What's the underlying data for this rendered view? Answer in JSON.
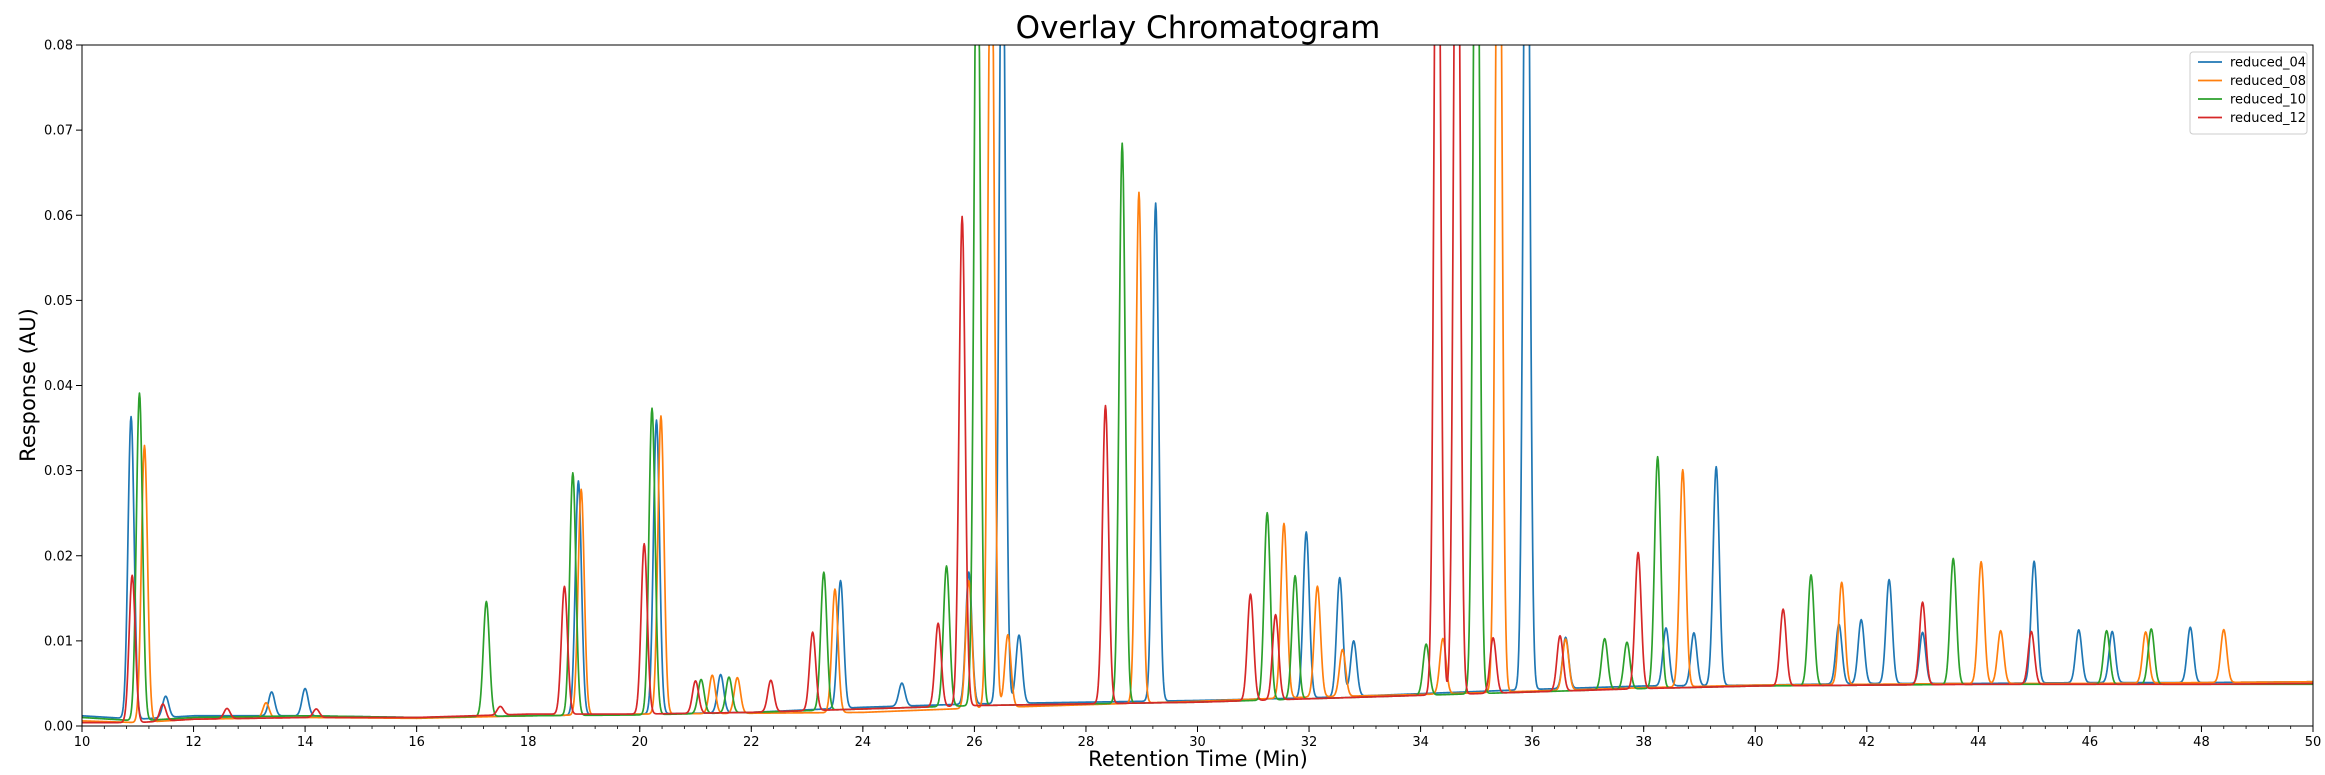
{
  "chart_data": {
    "type": "line",
    "title": "Overlay Chromatogram",
    "xlabel": "Retention Time (Min)",
    "ylabel": "Response (AU)",
    "xlim": [
      10,
      50
    ],
    "ylim": [
      0,
      0.08
    ],
    "x_ticks": [
      "10",
      "12",
      "14",
      "16",
      "18",
      "20",
      "22",
      "24",
      "26",
      "28",
      "30",
      "32",
      "34",
      "36",
      "38",
      "40",
      "42",
      "44",
      "46",
      "48",
      "50"
    ],
    "y_ticks": [
      "0.00",
      "0.01",
      "0.02",
      "0.03",
      "0.04",
      "0.05",
      "0.06",
      "0.07",
      "0.08"
    ],
    "grid": false,
    "legend_position": "top-right",
    "series": [
      {
        "name": "reduced_04",
        "color": "#1f77b4",
        "baseline": [
          [
            10,
            0.0012
          ],
          [
            11,
            0.0008
          ],
          [
            12,
            0.0012
          ],
          [
            14,
            0.0012
          ],
          [
            16,
            0.001
          ],
          [
            18,
            0.0012
          ],
          [
            20,
            0.0014
          ],
          [
            22,
            0.0016
          ],
          [
            24,
            0.0022
          ],
          [
            26,
            0.0026
          ],
          [
            28,
            0.0028
          ],
          [
            30,
            0.003
          ],
          [
            32,
            0.0033
          ],
          [
            34,
            0.0038
          ],
          [
            36,
            0.0043
          ],
          [
            38,
            0.0047
          ],
          [
            40,
            0.0048
          ],
          [
            42,
            0.005
          ],
          [
            44,
            0.005
          ],
          [
            46,
            0.0051
          ],
          [
            48,
            0.0051
          ],
          [
            50,
            0.0052
          ]
        ],
        "peaks": [
          [
            10.88,
            0.0355
          ],
          [
            11.5,
            0.0025
          ],
          [
            13.4,
            0.0028
          ],
          [
            14.0,
            0.0032
          ],
          [
            18.9,
            0.0275
          ],
          [
            20.3,
            0.0345
          ],
          [
            21.45,
            0.0045
          ],
          [
            23.6,
            0.015
          ],
          [
            24.7,
            0.0027
          ],
          [
            25.9,
            0.0155
          ],
          [
            26.5,
            0.1
          ],
          [
            26.8,
            0.008
          ],
          [
            29.25,
            0.0585
          ],
          [
            31.95,
            0.0195
          ],
          [
            32.55,
            0.014
          ],
          [
            32.8,
            0.0065
          ],
          [
            35.9,
            0.12
          ],
          [
            36.6,
            0.006
          ],
          [
            38.4,
            0.0068
          ],
          [
            38.9,
            0.0062
          ],
          [
            39.3,
            0.0257
          ],
          [
            41.5,
            0.007
          ],
          [
            41.9,
            0.0075
          ],
          [
            42.4,
            0.0122
          ],
          [
            43.0,
            0.006
          ],
          [
            45.0,
            0.0143
          ],
          [
            45.8,
            0.0062
          ],
          [
            46.4,
            0.006
          ],
          [
            47.8,
            0.0065
          ]
        ]
      },
      {
        "name": "reduced_08",
        "color": "#ff7f0e",
        "baseline": [
          [
            10,
            0.0006
          ],
          [
            11,
            0.0004
          ],
          [
            12,
            0.0008
          ],
          [
            14,
            0.001
          ],
          [
            16,
            0.0009
          ],
          [
            18,
            0.0012
          ],
          [
            20,
            0.0014
          ],
          [
            22,
            0.0015
          ],
          [
            24,
            0.0016
          ],
          [
            26,
            0.0021
          ],
          [
            28,
            0.0025
          ],
          [
            30,
            0.0029
          ],
          [
            32,
            0.0034
          ],
          [
            34,
            0.0037
          ],
          [
            36,
            0.0041
          ],
          [
            38,
            0.0045
          ],
          [
            40,
            0.0048
          ],
          [
            42,
            0.0049
          ],
          [
            44,
            0.005
          ],
          [
            46,
            0.005
          ],
          [
            48,
            0.0051
          ],
          [
            50,
            0.0052
          ]
        ],
        "peaks": [
          [
            11.12,
            0.0325
          ],
          [
            13.3,
            0.0018
          ],
          [
            18.95,
            0.0265
          ],
          [
            20.38,
            0.035
          ],
          [
            21.3,
            0.0045
          ],
          [
            21.75,
            0.0042
          ],
          [
            23.5,
            0.0145
          ],
          [
            25.9,
            0.015
          ],
          [
            26.3,
            0.1
          ],
          [
            26.6,
            0.0085
          ],
          [
            28.95,
            0.06
          ],
          [
            31.55,
            0.0205
          ],
          [
            32.15,
            0.013
          ],
          [
            32.6,
            0.0055
          ],
          [
            34.4,
            0.0065
          ],
          [
            35.4,
            0.12
          ],
          [
            36.6,
            0.006
          ],
          [
            38.7,
            0.0255
          ],
          [
            41.55,
            0.012
          ],
          [
            44.05,
            0.0143
          ],
          [
            44.4,
            0.0062
          ],
          [
            47.0,
            0.006
          ],
          [
            48.4,
            0.0062
          ]
        ]
      },
      {
        "name": "reduced_10",
        "color": "#2ca02c",
        "baseline": [
          [
            10,
            0.001
          ],
          [
            11,
            0.0006
          ],
          [
            12,
            0.001
          ],
          [
            14,
            0.0012
          ],
          [
            16,
            0.001
          ],
          [
            18,
            0.0012
          ],
          [
            20,
            0.0013
          ],
          [
            22,
            0.0016
          ],
          [
            24,
            0.002
          ],
          [
            26,
            0.0024
          ],
          [
            28,
            0.0026
          ],
          [
            30,
            0.0028
          ],
          [
            32,
            0.0032
          ],
          [
            34,
            0.0036
          ],
          [
            36,
            0.004
          ],
          [
            38,
            0.0044
          ],
          [
            40,
            0.0047
          ],
          [
            42,
            0.0048
          ],
          [
            44,
            0.0049
          ],
          [
            46,
            0.0049
          ],
          [
            48,
            0.0049
          ],
          [
            50,
            0.0049
          ]
        ],
        "peaks": [
          [
            11.03,
            0.0385
          ],
          [
            17.25,
            0.0135
          ],
          [
            18.8,
            0.0285
          ],
          [
            20.22,
            0.036
          ],
          [
            21.1,
            0.004
          ],
          [
            21.6,
            0.0042
          ],
          [
            23.3,
            0.0162
          ],
          [
            25.5,
            0.0165
          ],
          [
            26.05,
            0.1
          ],
          [
            28.65,
            0.0658
          ],
          [
            31.25,
            0.022
          ],
          [
            31.75,
            0.0145
          ],
          [
            34.1,
            0.006
          ],
          [
            35.0,
            0.12
          ],
          [
            37.3,
            0.006
          ],
          [
            37.7,
            0.0055
          ],
          [
            38.25,
            0.0272
          ],
          [
            41.0,
            0.013
          ],
          [
            43.55,
            0.0148
          ],
          [
            46.3,
            0.0063
          ],
          [
            47.1,
            0.0065
          ]
        ]
      },
      {
        "name": "reduced_12",
        "color": "#d62728",
        "baseline": [
          [
            10,
            0.0004
          ],
          [
            11,
            0.0004
          ],
          [
            12,
            0.0008
          ],
          [
            14,
            0.001
          ],
          [
            16,
            0.001
          ],
          [
            18,
            0.0014
          ],
          [
            20,
            0.0014
          ],
          [
            22,
            0.0016
          ],
          [
            24,
            0.002
          ],
          [
            26,
            0.0024
          ],
          [
            28,
            0.0026
          ],
          [
            30,
            0.0028
          ],
          [
            32,
            0.0032
          ],
          [
            34,
            0.0036
          ],
          [
            36,
            0.004
          ],
          [
            38,
            0.0044
          ],
          [
            40,
            0.0047
          ],
          [
            42,
            0.0048
          ],
          [
            44,
            0.0049
          ],
          [
            46,
            0.0049
          ],
          [
            48,
            0.0049
          ],
          [
            50,
            0.005
          ]
        ],
        "peaks": [
          [
            10.9,
            0.0173
          ],
          [
            11.45,
            0.002
          ],
          [
            12.6,
            0.0012
          ],
          [
            14.2,
            0.001
          ],
          [
            17.5,
            0.001
          ],
          [
            18.65,
            0.015
          ],
          [
            20.08,
            0.02
          ],
          [
            21.0,
            0.0038
          ],
          [
            22.35,
            0.0037
          ],
          [
            23.1,
            0.0092
          ],
          [
            25.35,
            0.0098
          ],
          [
            25.78,
            0.0575
          ],
          [
            28.35,
            0.035
          ],
          [
            30.95,
            0.0125
          ],
          [
            31.4,
            0.01
          ],
          [
            34.3,
            0.12
          ],
          [
            34.65,
            0.12
          ],
          [
            35.3,
            0.0065
          ],
          [
            36.5,
            0.0065
          ],
          [
            37.9,
            0.016
          ],
          [
            40.5,
            0.009
          ],
          [
            43.0,
            0.0097
          ],
          [
            44.95,
            0.0062
          ]
        ]
      }
    ]
  }
}
